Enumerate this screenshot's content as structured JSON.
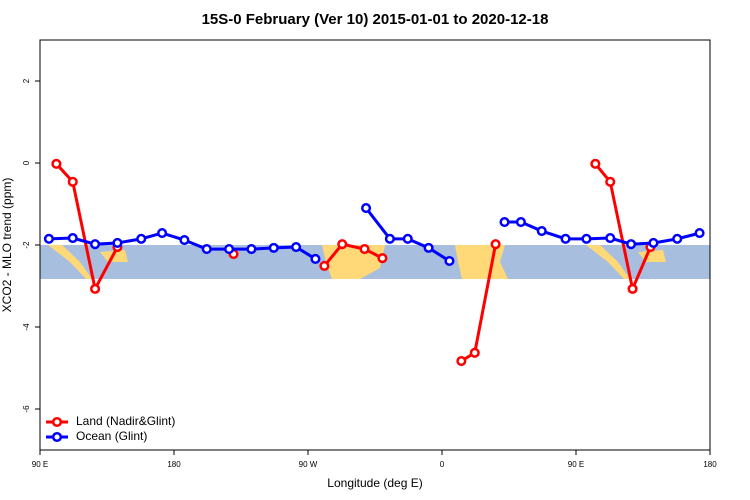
{
  "chart_data": {
    "type": "line",
    "title": "15S-0 February (Ver 10)   2015-01-01 to 2020-12-18",
    "x_label": "Longitude (deg E)",
    "y_label": "XCO2 - MLO trend (ppm)",
    "xlim": [
      90,
      540
    ],
    "xticks": [
      {
        "value": 90,
        "label": "90 E"
      },
      180,
      {
        "value": 270,
        "label": "90 W"
      },
      {
        "value": 360,
        "label": "0"
      },
      {
        "value": 450,
        "label": "90 E"
      },
      {
        "value": 540,
        "label": "180"
      }
    ],
    "ylim": [
      -7,
      3
    ],
    "yticks": [
      -6,
      -4,
      -2,
      0,
      2
    ],
    "legend": "bottom-left",
    "series": [
      {
        "name": "Land (Nadir&Glint)",
        "color": "#ff0000",
        "x": [
          101,
          112,
          127,
          142,
          null,
          220,
          null,
          281,
          293,
          308,
          320,
          null,
          373,
          382,
          396,
          null,
          463,
          473,
          488,
          500
        ],
        "values": [
          -0.02,
          -0.46,
          -3.07,
          -2.05,
          null,
          -2.22,
          null,
          -2.51,
          -1.98,
          -2.1,
          -2.32,
          null,
          -4.83,
          -4.63,
          -1.98,
          null,
          -0.02,
          -0.46,
          -3.07,
          -2.05
        ]
      },
      {
        "name": "Ocean (Glint)",
        "color": "#0000ff",
        "x": [
          96,
          112,
          127,
          142,
          158,
          172,
          187,
          202,
          217,
          232,
          247,
          262,
          275,
          null,
          309,
          325,
          337,
          351,
          365,
          null,
          402,
          413,
          427,
          443,
          457,
          473,
          487,
          502,
          518,
          533
        ],
        "values": [
          -1.85,
          -1.83,
          -1.98,
          -1.95,
          -1.85,
          -1.71,
          -1.88,
          -2.1,
          -2.1,
          -2.1,
          -2.07,
          -2.05,
          -2.34,
          null,
          -1.1,
          -1.85,
          -1.85,
          -2.07,
          -2.39,
          null,
          -1.44,
          -1.44,
          -1.66,
          -1.85,
          -1.85,
          -1.83,
          -1.98,
          -1.95,
          -1.85,
          -1.71
        ]
      }
    ]
  }
}
